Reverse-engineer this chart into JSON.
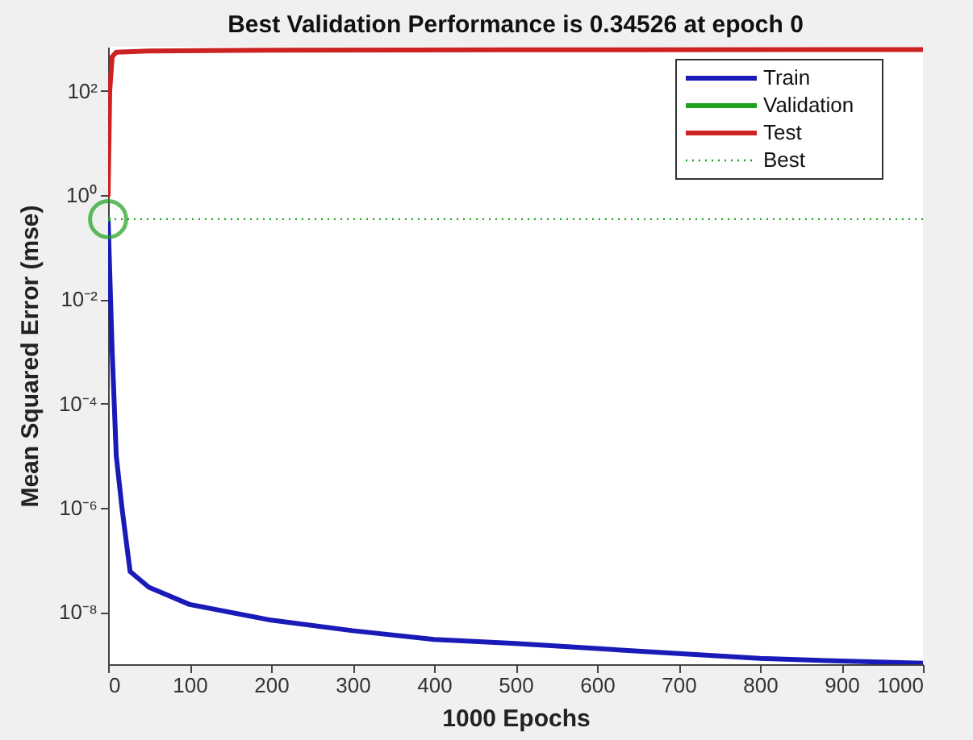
{
  "chart_data": {
    "type": "line",
    "title": "Best Validation Performance is 0.34526 at epoch 0",
    "xlabel": "1000 Epochs",
    "ylabel": "Mean Squared Error  (mse)",
    "xlim": [
      0,
      1000
    ],
    "xticks": [
      0,
      100,
      200,
      300,
      400,
      500,
      600,
      700,
      800,
      900,
      1000
    ],
    "ylim": [
      1e-09,
      700
    ],
    "log": true,
    "yticks": [
      {
        "value": 1e-08,
        "label": "10⁻⁸"
      },
      {
        "value": 1e-06,
        "label": "10⁻⁶"
      },
      {
        "value": 0.0001,
        "label": "10⁻⁴"
      },
      {
        "value": 0.01,
        "label": "10⁻²"
      },
      {
        "value": 1,
        "label": "10⁰"
      },
      {
        "value": 100,
        "label": "10²"
      }
    ],
    "grid": false,
    "legend": "top right",
    "series": [
      {
        "name": "Train",
        "color": "#1a1ab8",
        "line_style": "solid",
        "x": [
          0,
          5,
          10,
          17,
          27,
          50,
          100,
          200,
          300,
          400,
          500,
          600,
          700,
          800,
          900,
          1000
        ],
        "values": [
          0.345,
          0.001,
          1e-05,
          1e-06,
          6e-08,
          3e-08,
          1.4e-08,
          7e-09,
          4.4e-09,
          3e-09,
          2.5e-09,
          2e-09,
          1.6e-09,
          1.3e-09,
          1.15e-09,
          1.05e-09
        ]
      },
      {
        "name": "Validation",
        "color": "#1fa01f",
        "line_style": "solid",
        "marker": "circle",
        "x": [
          0
        ],
        "values": [
          0.345
        ]
      },
      {
        "name": "Test",
        "color": "#cc2222",
        "line_style": "solid",
        "x": [
          0,
          2,
          5,
          10,
          50,
          200,
          500,
          1000
        ],
        "values": [
          1,
          100,
          450,
          550,
          580,
          600,
          610,
          620
        ]
      },
      {
        "name": "Best",
        "color": "#1fa01f",
        "line_style": "dotted",
        "x": [
          0,
          1000
        ],
        "values": [
          0.345,
          0.345
        ]
      }
    ]
  }
}
